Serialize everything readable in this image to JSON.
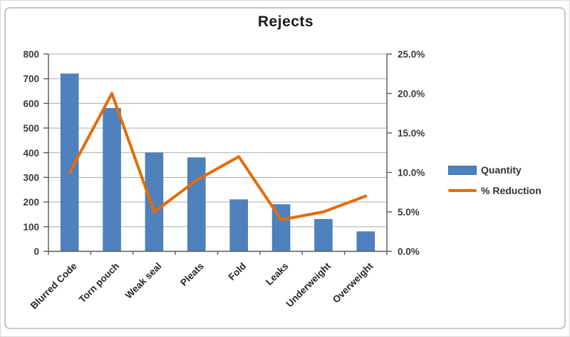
{
  "chart_data": {
    "type": "combo",
    "title": "Rejects",
    "categories": [
      "Blurred Code",
      "Torn pouch",
      "Weak seal",
      "Pleats",
      "Fold",
      "Leaks",
      "Underweight",
      "Overweight"
    ],
    "series": [
      {
        "name": "Quantity",
        "type": "bar",
        "axis": "left",
        "values": [
          720,
          580,
          400,
          380,
          210,
          190,
          130,
          80
        ]
      },
      {
        "name": "% Reduction",
        "type": "line",
        "axis": "right",
        "values_percent": [
          10,
          20,
          5,
          9,
          12,
          4,
          5,
          7
        ]
      }
    ],
    "left_axis": {
      "min": 0,
      "max": 800,
      "step": 100,
      "tick_labels": [
        "0",
        "100",
        "200",
        "300",
        "400",
        "500",
        "600",
        "700",
        "800"
      ]
    },
    "right_axis": {
      "min_percent": 0,
      "max_percent": 25,
      "step_percent": 5,
      "tick_labels": [
        "0.0%",
        "5.0%",
        "10.0%",
        "15.0%",
        "20.0%",
        "25.0%"
      ]
    },
    "legend": {
      "position": "right",
      "entries": [
        "Quantity",
        "% Reduction"
      ]
    },
    "grid": true,
    "xlabel": "",
    "ylabel_left": "",
    "ylabel_right": ""
  },
  "colors": {
    "bar": "#4E81BD",
    "bar_border": "#3E6FA6",
    "line": "#E36C09",
    "gridline": "#ABABAB",
    "axis": "#595959",
    "tick_label": "#3B3B3B",
    "category_label": "#262626",
    "title": "#1A1A1A",
    "frame": "#C6C6C6"
  }
}
